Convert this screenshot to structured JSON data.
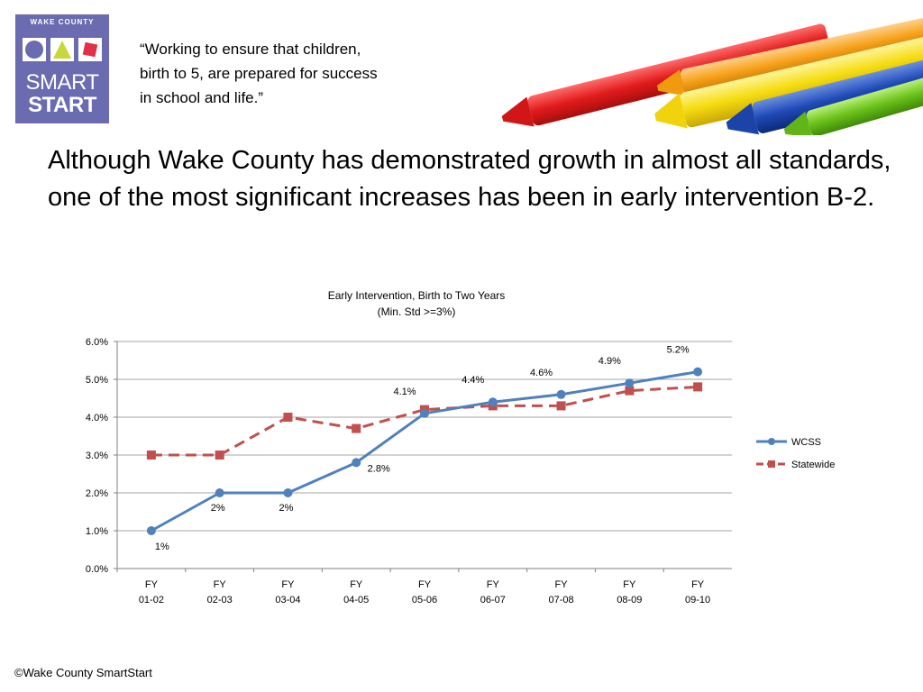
{
  "header": {
    "logo": {
      "top_text": "WAKE COUNTY",
      "line1": "SMART",
      "line2": "START"
    },
    "tagline_lines": [
      "“Working to ensure that children,",
      "birth to 5, are prepared for success",
      "in school and life.”"
    ]
  },
  "headline": "Although Wake County has demonstrated growth in almost all standards, one of the most significant increases has been in early intervention B-2.",
  "footer": "©Wake County SmartStart",
  "colors": {
    "logo_bg": "#6a6bb0",
    "wcss": "#4f81bd",
    "statewide": "#c0504d",
    "grid": "#a6a6a6"
  },
  "chart_data": {
    "type": "line",
    "title": "Early Intervention, Birth to Two Years",
    "subtitle": "(Min. Std >=3%)",
    "categories_line1": [
      "FY",
      "FY",
      "FY",
      "FY",
      "FY",
      "FY",
      "FY",
      "FY",
      "FY"
    ],
    "categories_line2": [
      "01-02",
      "02-03",
      "03-04",
      "04-05",
      "05-06",
      "06-07",
      "07-08",
      "08-09",
      "09-10"
    ],
    "ylim": [
      0,
      6
    ],
    "yticks": [
      0,
      1,
      2,
      3,
      4,
      5,
      6
    ],
    "ytick_labels": [
      "0.0%",
      "1.0%",
      "2.0%",
      "3.0%",
      "4.0%",
      "5.0%",
      "6.0%"
    ],
    "grid": true,
    "legend_position": "right",
    "series": [
      {
        "name": "WCSS",
        "marker": "circle",
        "dashed": false,
        "values": [
          1,
          2,
          2,
          2.8,
          4.1,
          4.4,
          4.6,
          4.9,
          5.2
        ],
        "labels": [
          "1%",
          "2%",
          "2%",
          "2.8%",
          "4.1%",
          "4.4%",
          "4.6%",
          "4.9%",
          "5.2%"
        ]
      },
      {
        "name": "Statewide",
        "marker": "square",
        "dashed": true,
        "values": [
          3.0,
          3.0,
          4.0,
          3.7,
          4.2,
          4.3,
          4.3,
          4.7,
          4.8
        ]
      }
    ]
  }
}
